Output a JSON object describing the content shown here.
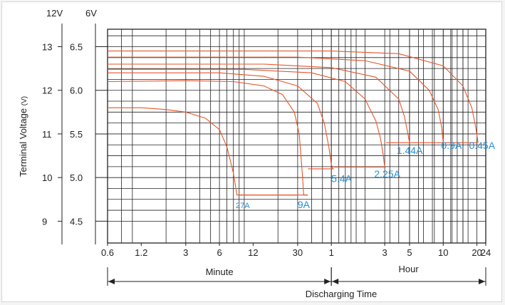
{
  "chart_data": {
    "type": "line",
    "title": "",
    "xlabel": "Discharging Time",
    "ylabel": "Terminal Voltage (V)",
    "ylabel_main": "Terminal Voltage",
    "ylabel_unit": "(V)",
    "x_scale": "log",
    "x_ticks": [
      {
        "label": "0.6",
        "minutes": 0.6
      },
      {
        "label": "1.2",
        "minutes": 1.2
      },
      {
        "label": "3",
        "minutes": 3
      },
      {
        "label": "6",
        "minutes": 6
      },
      {
        "label": "12",
        "minutes": 12
      },
      {
        "label": "30",
        "minutes": 30
      },
      {
        "label": "1",
        "minutes": 60
      },
      {
        "label": "3",
        "minutes": 180
      },
      {
        "label": "5",
        "minutes": 300
      },
      {
        "label": "10",
        "minutes": 600
      },
      {
        "label": "20",
        "minutes": 1200
      },
      {
        "label": "24",
        "minutes": 1440
      }
    ],
    "y_axes": [
      {
        "header": "12V",
        "ticks": [
          "13",
          "12",
          "11",
          "10",
          "9"
        ]
      },
      {
        "header": "6V",
        "ticks": [
          "6.5",
          "6.0",
          "5.5",
          "5.0",
          "4.5"
        ]
      }
    ],
    "x_unit_ranges": [
      {
        "label": "Minute",
        "from_minutes": 0.6,
        "to_minutes": 60
      },
      {
        "label": "Hour",
        "from_minutes": 60,
        "to_minutes": 1440
      }
    ],
    "xlim_minutes": [
      0.6,
      1440
    ],
    "ylim_6v": [
      4.25,
      6.7
    ],
    "grid": true,
    "series": [
      {
        "name": "27A",
        "x_minutes": [
          0.6,
          1.2,
          2,
          3,
          4.5,
          6,
          7,
          8,
          8.6,
          8.8,
          9.2,
          30
        ],
        "y_6v": [
          5.8,
          5.8,
          5.78,
          5.75,
          5.68,
          5.55,
          5.35,
          5.05,
          4.8,
          4.8,
          4.8,
          4.8
        ]
      },
      {
        "name": "9A",
        "x_minutes": [
          0.6,
          3,
          8,
          15,
          22,
          28,
          31,
          33,
          34,
          36,
          37
        ],
        "y_6v": [
          6.1,
          6.11,
          6.1,
          6.05,
          5.95,
          5.75,
          5.5,
          5.05,
          4.8,
          4.8,
          4.8
        ]
      },
      {
        "name": "5.4A",
        "x_minutes": [
          0.6,
          6,
          15,
          30,
          45,
          52,
          57,
          60,
          62,
          63
        ],
        "y_6v": [
          6.2,
          6.2,
          6.16,
          6.05,
          5.85,
          5.62,
          5.35,
          5.15,
          5.1,
          5.1
        ]
      },
      {
        "name": "2.25A",
        "x_minutes": [
          0.6,
          10,
          40,
          80,
          120,
          150,
          165,
          175,
          180,
          185
        ],
        "y_6v": [
          6.24,
          6.24,
          6.2,
          6.1,
          5.9,
          5.65,
          5.45,
          5.25,
          5.12,
          5.12
        ]
      },
      {
        "name": "1.44A",
        "x_minutes": [
          0.6,
          15,
          60,
          150,
          240,
          270,
          290,
          300
        ],
        "y_6v": [
          6.3,
          6.3,
          6.26,
          6.15,
          5.9,
          5.7,
          5.5,
          5.4
        ]
      },
      {
        "name": "0.9A",
        "x_minutes": [
          0.6,
          30,
          120,
          300,
          450,
          540,
          580,
          600
        ],
        "y_6v": [
          6.38,
          6.38,
          6.34,
          6.22,
          6.0,
          5.78,
          5.58,
          5.4
        ]
      },
      {
        "name": "0.45A",
        "x_minutes": [
          0.6,
          60,
          240,
          600,
          900,
          1080,
          1170,
          1230
        ],
        "y_6v": [
          6.45,
          6.45,
          6.42,
          6.28,
          6.05,
          5.8,
          5.58,
          5.4
        ]
      }
    ],
    "cutoffs": [
      {
        "from_minutes": 9,
        "to_minutes": 37,
        "y_6v": 4.8
      },
      {
        "from_minutes": 37,
        "to_minutes": 63,
        "y_6v": 5.1
      },
      {
        "from_minutes": 63,
        "to_minutes": 185,
        "y_6v": 5.12
      },
      {
        "from_minutes": 185,
        "to_minutes": 300,
        "y_6v": 5.4
      },
      {
        "from_minutes": 300,
        "to_minutes": 1230,
        "y_6v": 5.4
      }
    ],
    "curve_labels": [
      {
        "text": "27A",
        "minutes": 8.4,
        "y_6v": 4.65,
        "small": true
      },
      {
        "text": "9A",
        "minutes": 30,
        "y_6v": 4.65
      },
      {
        "text": "5.4A",
        "minutes": 60,
        "y_6v": 4.95
      },
      {
        "text": "2.25A",
        "minutes": 145,
        "y_6v": 5.0
      },
      {
        "text": "1.44A",
        "minutes": 230,
        "y_6v": 5.27
      },
      {
        "text": "0.9A",
        "minutes": 575,
        "y_6v": 5.33
      },
      {
        "text": "0.45A",
        "minutes": 1020,
        "y_6v": 5.33
      }
    ],
    "colors": {
      "curve": "#e8552a",
      "label": "#2b8fd6",
      "grid": "#222222"
    }
  }
}
